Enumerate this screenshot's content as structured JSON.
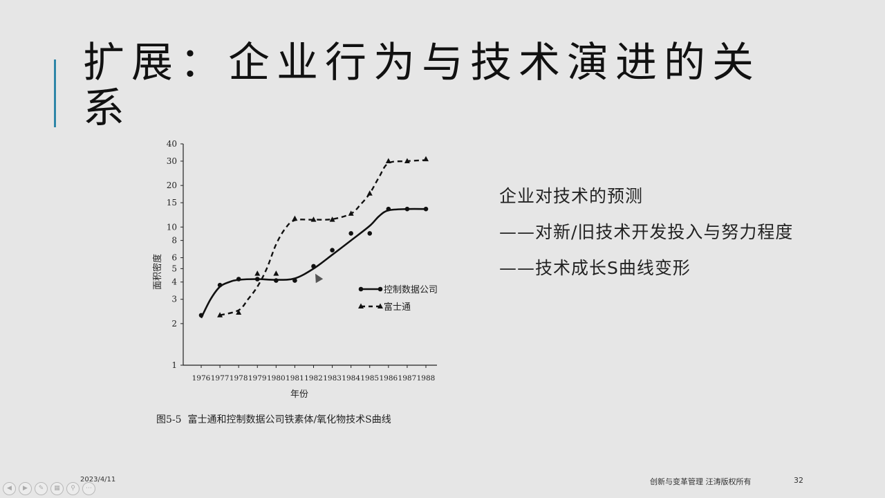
{
  "title": "扩展：企业行为与技术演进的关系",
  "side": {
    "line1": "企业对技术的预测",
    "line2": "——对新/旧技术开发投入与努力程度",
    "line3": "——技术成长S曲线变形"
  },
  "footer": {
    "date": "2023/4/11",
    "copyright": "创新与变革管理 汪涛版权所有",
    "page": "32"
  },
  "nav_icons": [
    "prev-icon",
    "next-icon",
    "pen-icon",
    "slides-icon",
    "zoom-icon",
    "more-icon"
  ],
  "chart_data": {
    "type": "line",
    "ylabel": "面积密度",
    "xlabel": "年份",
    "caption": "图5-5  富士通和控制数据公司铁素体/氧化物技术S曲线",
    "yscale": "log",
    "ylim": [
      1,
      40
    ],
    "ytick_values": [
      1,
      2,
      3,
      4,
      5,
      6,
      8,
      10,
      15,
      20,
      30,
      40
    ],
    "ytick_labels": [
      "1",
      "2",
      "3",
      "4",
      "5",
      "6",
      "8",
      "10",
      "15",
      "20",
      "30",
      "40"
    ],
    "x": [
      1976,
      1977,
      1978,
      1979,
      1980,
      1981,
      1982,
      1983,
      1984,
      1985,
      1986,
      1987,
      1988
    ],
    "series": [
      {
        "name": "控制数据公司",
        "style": "solid",
        "marker": "circle",
        "points": [
          [
            1976,
            2.3
          ],
          [
            1977,
            3.8
          ],
          [
            1978,
            4.2
          ],
          [
            1979,
            4.2
          ],
          [
            1980,
            4.1
          ],
          [
            1981,
            4.1
          ],
          [
            1982,
            5.2
          ],
          [
            1983,
            6.8
          ],
          [
            1984,
            9.0
          ],
          [
            1985,
            9.0
          ],
          [
            1986,
            13.5
          ],
          [
            1987,
            13.5
          ],
          [
            1988,
            13.5
          ]
        ],
        "curve": [
          [
            1976,
            2.2
          ],
          [
            1976.5,
            3.0
          ],
          [
            1977,
            3.7
          ],
          [
            1977.5,
            4.0
          ],
          [
            1978,
            4.15
          ],
          [
            1979,
            4.2
          ],
          [
            1980,
            4.15
          ],
          [
            1981,
            4.25
          ],
          [
            1982,
            5.0
          ],
          [
            1983,
            6.3
          ],
          [
            1984,
            8.0
          ],
          [
            1985,
            10.2
          ],
          [
            1985.5,
            12.0
          ],
          [
            1986,
            13.2
          ],
          [
            1987,
            13.5
          ],
          [
            1988,
            13.5
          ]
        ]
      },
      {
        "name": "富士通",
        "style": "dashed",
        "marker": "triangle",
        "points": [
          [
            1977,
            2.3
          ],
          [
            1978,
            2.4
          ],
          [
            1979,
            4.6
          ],
          [
            1980,
            4.6
          ],
          [
            1981,
            11.5
          ],
          [
            1982,
            11.3
          ],
          [
            1983,
            11.3
          ],
          [
            1984,
            12.5
          ],
          [
            1985,
            17.5
          ],
          [
            1986,
            30
          ],
          [
            1987,
            30
          ],
          [
            1988,
            31
          ]
        ],
        "curve": [
          [
            1977,
            2.3
          ],
          [
            1978,
            2.5
          ],
          [
            1978.5,
            3.0
          ],
          [
            1979,
            3.7
          ],
          [
            1979.5,
            5.0
          ],
          [
            1980,
            7.5
          ],
          [
            1980.5,
            9.8
          ],
          [
            1981,
            11.2
          ],
          [
            1982,
            11.3
          ],
          [
            1983,
            11.4
          ],
          [
            1984,
            12.5
          ],
          [
            1984.5,
            14.5
          ],
          [
            1985,
            17.5
          ],
          [
            1985.5,
            23
          ],
          [
            1986,
            29
          ],
          [
            1987,
            30
          ],
          [
            1988,
            30.5
          ]
        ]
      }
    ],
    "legend_position": "right"
  }
}
